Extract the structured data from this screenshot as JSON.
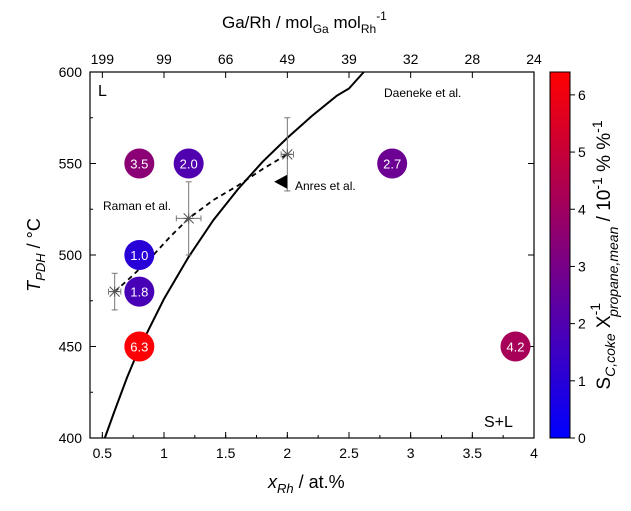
{
  "chart_data": {
    "type": "scatter",
    "x_axis": {
      "label_main": "x",
      "label_sub": "Rh",
      "label_unit": " / at.%",
      "range": [
        0.4,
        4.0
      ],
      "ticks": [
        0.5,
        1,
        1.5,
        2,
        2.5,
        3,
        3.5,
        4
      ],
      "tick_labels": [
        "0.5",
        "1",
        "1.5",
        "2",
        "2.5",
        "3",
        "3.5",
        "4"
      ]
    },
    "y_axis": {
      "label_main": "T",
      "label_sub": "PDH",
      "label_unit": " / °C",
      "range": [
        400,
        600
      ],
      "ticks": [
        400,
        450,
        500,
        550,
        600
      ],
      "tick_labels": [
        "400",
        "450",
        "500",
        "550",
        "600"
      ]
    },
    "top_axis": {
      "label_main": "Ga/Rh / mol",
      "label_sub1": "Ga",
      "label_mid": " mol",
      "label_sub2": "Rh",
      "label_sup": "-1",
      "ticks": [
        {
          "label": "199",
          "x": 0.5
        },
        {
          "label": "99",
          "x": 1.0
        },
        {
          "label": "66",
          "x": 1.5
        },
        {
          "label": "49",
          "x": 2.0
        },
        {
          "label": "39",
          "x": 2.5
        },
        {
          "label": "32",
          "x": 3.0
        },
        {
          "label": "28",
          "x": 3.5
        },
        {
          "label": "24",
          "x": 4.0
        }
      ]
    },
    "colorbar": {
      "range": [
        0,
        6.4
      ],
      "ticks": [
        0,
        1,
        2,
        3,
        4,
        5,
        6
      ],
      "tick_labels": [
        "0",
        "1",
        "2",
        "3",
        "4",
        "5",
        "6"
      ],
      "label_s": "S",
      "label_s_sub": "C,coke",
      "label_x": "X",
      "label_x_sup": "-1",
      "label_x_sub": "propane,mean",
      "label_unit": " / 10",
      "label_unit_sup": "-1",
      "label_tail": " % %",
      "label_tail_sup": "-1",
      "color_low": "#0000ff",
      "color_high": "#ff0000"
    },
    "points": [
      {
        "x": 0.8,
        "y": 550,
        "value": 3.5,
        "label": "3.5"
      },
      {
        "x": 1.2,
        "y": 550,
        "value": 2.0,
        "label": "2.0"
      },
      {
        "x": 2.85,
        "y": 550,
        "value": 2.7,
        "label": "2.7"
      },
      {
        "x": 0.8,
        "y": 500,
        "value": 1.0,
        "label": "1.0"
      },
      {
        "x": 0.8,
        "y": 480,
        "value": 1.8,
        "label": "1.8"
      },
      {
        "x": 0.8,
        "y": 450,
        "value": 6.3,
        "label": "6.3"
      },
      {
        "x": 3.85,
        "y": 450,
        "value": 4.2,
        "label": "4.2"
      }
    ],
    "raman_points": [
      {
        "x": 0.6,
        "y": 480,
        "xerr": 0.05,
        "yerr": 10
      },
      {
        "x": 1.2,
        "y": 520,
        "xerr": 0.1,
        "yerr": 20
      },
      {
        "x": 2.0,
        "y": 555,
        "xerr": 0.05,
        "yerr": 20
      }
    ],
    "raman_dashed_curve": [
      [
        0.6,
        480
      ],
      [
        0.75,
        489
      ],
      [
        0.9,
        499
      ],
      [
        1.05,
        510
      ],
      [
        1.2,
        520
      ],
      [
        1.4,
        530
      ],
      [
        1.6,
        538
      ],
      [
        1.8,
        547
      ],
      [
        2.0,
        555
      ]
    ],
    "liquidus_curve": [
      [
        0.52,
        400
      ],
      [
        0.6,
        415
      ],
      [
        0.7,
        433
      ],
      [
        0.8,
        449
      ],
      [
        1.0,
        476
      ],
      [
        1.2,
        499
      ],
      [
        1.4,
        519
      ],
      [
        1.6,
        536
      ],
      [
        1.8,
        551
      ],
      [
        2.0,
        564
      ],
      [
        2.2,
        576
      ],
      [
        2.4,
        587
      ],
      [
        2.5,
        591
      ],
      [
        2.62,
        600
      ]
    ],
    "anres_marker": {
      "x": 1.95,
      "y": 540
    },
    "annotations": {
      "L": "L",
      "SL": "S+L",
      "daeneke": "Daeneke et al.",
      "raman": "Raman et al.",
      "anres": "Anres et al."
    }
  }
}
